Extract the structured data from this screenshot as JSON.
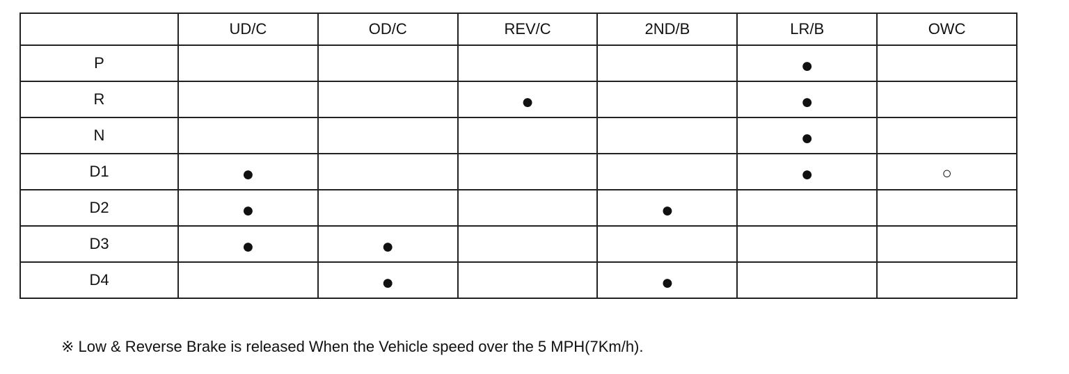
{
  "table": {
    "header": [
      null,
      "UD/C",
      "OD/C",
      "REV/C",
      "2ND/B",
      "LR/B",
      "OWC"
    ],
    "rows": [
      [
        "P",
        null,
        null,
        null,
        null,
        "●",
        null
      ],
      [
        "R",
        null,
        null,
        "●",
        null,
        "●",
        null
      ],
      [
        "N",
        null,
        null,
        null,
        null,
        "●",
        null
      ],
      [
        "D1",
        "●",
        null,
        null,
        null,
        "●",
        "○"
      ],
      [
        "D2",
        "●",
        null,
        null,
        "●",
        null,
        null
      ],
      [
        "D3",
        "●",
        "●",
        null,
        null,
        null,
        null
      ],
      [
        "D4",
        null,
        "●",
        null,
        "●",
        null,
        null
      ]
    ]
  },
  "footnote": "※ Low & Reverse Brake is released When the Vehicle speed over the 5 MPH(7Km/h)."
}
